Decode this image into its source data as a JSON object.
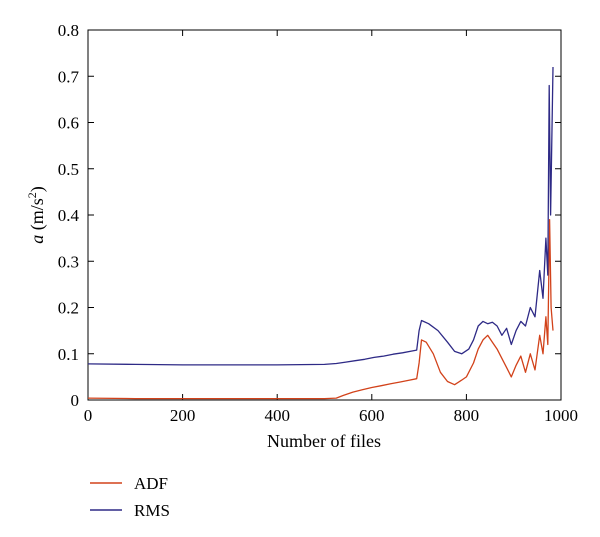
{
  "chart_data": {
    "type": "line",
    "xlabel": "Number of files",
    "ylabel": {
      "var": "a",
      "unit_pre": " (m/s",
      "unit_sup": "2",
      "unit_post": ")"
    },
    "xlim": [
      0,
      1000
    ],
    "ylim": [
      0,
      0.8
    ],
    "xticks": [
      0,
      200,
      400,
      600,
      800,
      1000
    ],
    "yticks": [
      0,
      0.1,
      0.2,
      0.3,
      0.4,
      0.5,
      0.6,
      0.7,
      0.8
    ],
    "xtick_labels": [
      "0",
      "200",
      "400",
      "600",
      "800",
      "1000"
    ],
    "ytick_labels": [
      "0",
      "0.1",
      "0.2",
      "0.3",
      "0.4",
      "0.5",
      "0.6",
      "0.7",
      "0.8"
    ],
    "grid": false,
    "legend_position": "below-left",
    "series": [
      {
        "name": "ADF",
        "color": "#d2421a",
        "x": [
          0,
          100,
          200,
          300,
          400,
          500,
          525,
          540,
          560,
          580,
          600,
          620,
          640,
          660,
          680,
          695,
          700,
          705,
          715,
          730,
          745,
          760,
          775,
          790,
          800,
          815,
          825,
          835,
          845,
          855,
          865,
          875,
          885,
          895,
          905,
          915,
          925,
          935,
          945,
          955,
          962,
          968,
          972,
          976,
          979,
          983
        ],
        "y": [
          0.004,
          0.003,
          0.003,
          0.003,
          0.003,
          0.003,
          0.004,
          0.01,
          0.017,
          0.022,
          0.027,
          0.031,
          0.035,
          0.039,
          0.043,
          0.046,
          0.08,
          0.13,
          0.125,
          0.1,
          0.06,
          0.04,
          0.033,
          0.043,
          0.05,
          0.08,
          0.11,
          0.13,
          0.14,
          0.125,
          0.11,
          0.09,
          0.07,
          0.05,
          0.075,
          0.095,
          0.06,
          0.1,
          0.065,
          0.14,
          0.1,
          0.18,
          0.12,
          0.39,
          0.2,
          0.15
        ]
      },
      {
        "name": "RMS",
        "color": "#2e2a86",
        "x": [
          0,
          100,
          200,
          300,
          400,
          500,
          525,
          545,
          565,
          585,
          605,
          625,
          645,
          665,
          685,
          695,
          700,
          705,
          720,
          740,
          760,
          775,
          790,
          805,
          815,
          825,
          835,
          845,
          855,
          865,
          875,
          885,
          895,
          905,
          915,
          925,
          935,
          945,
          955,
          962,
          968,
          972,
          975,
          978,
          983
        ],
        "y": [
          0.078,
          0.077,
          0.076,
          0.076,
          0.076,
          0.077,
          0.079,
          0.082,
          0.085,
          0.088,
          0.092,
          0.095,
          0.099,
          0.102,
          0.106,
          0.108,
          0.15,
          0.172,
          0.165,
          0.15,
          0.125,
          0.105,
          0.1,
          0.11,
          0.13,
          0.16,
          0.17,
          0.165,
          0.168,
          0.16,
          0.14,
          0.155,
          0.12,
          0.15,
          0.17,
          0.16,
          0.2,
          0.18,
          0.28,
          0.22,
          0.35,
          0.27,
          0.68,
          0.4,
          0.72
        ]
      }
    ]
  }
}
